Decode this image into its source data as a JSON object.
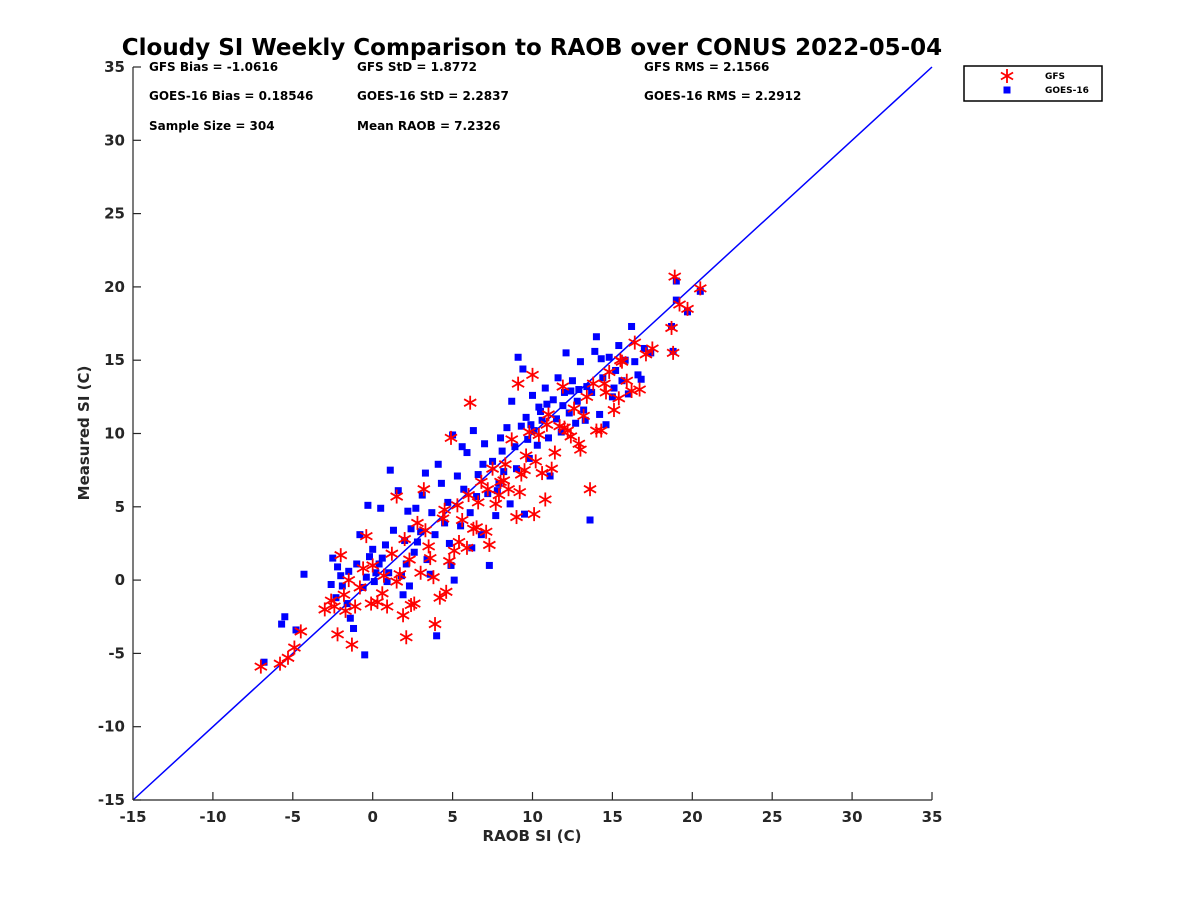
{
  "chart_data": {
    "type": "scatter",
    "title": "Cloudy SI Weekly Comparison to RAOB over CONUS 2022-05-04",
    "xlabel": "RAOB SI (C)",
    "ylabel": "Measured SI (C)",
    "xlim": [
      -15,
      35
    ],
    "ylim": [
      -15,
      35
    ],
    "xticks": [
      -15,
      -10,
      -5,
      0,
      5,
      10,
      15,
      20,
      25,
      30,
      35
    ],
    "yticks": [
      -15,
      -10,
      -5,
      0,
      5,
      10,
      15,
      20,
      25,
      30,
      35
    ],
    "grid": false,
    "legend_position": "outside top-right",
    "reference_line": {
      "name": "1:1",
      "color": "#0000ff",
      "x": [
        -15,
        35
      ],
      "y": [
        -15,
        35
      ]
    },
    "stats": [
      [
        "GFS Bias = -1.0616",
        "GFS StD = 1.8772",
        "GFS RMS = 2.1566"
      ],
      [
        "GOES-16 Bias = 0.18546",
        "GOES-16 StD = 2.2837",
        "GOES-16 RMS = 2.2912"
      ],
      [
        "Sample Size = 304",
        "Mean RAOB = 7.2326",
        ""
      ]
    ],
    "series": [
      {
        "name": "GOES-16",
        "marker": "square",
        "color": "#0000ff",
        "points": [
          [
            -6.8,
            -5.6
          ],
          [
            -5.5,
            -2.5
          ],
          [
            -5.7,
            -3.0
          ],
          [
            -4.8,
            -3.4
          ],
          [
            -4.3,
            0.4
          ],
          [
            -2.6,
            -0.3
          ],
          [
            -2.5,
            1.5
          ],
          [
            -2.2,
            0.9
          ],
          [
            -2.3,
            -1.2
          ],
          [
            -1.9,
            -0.4
          ],
          [
            -1.5,
            0.6
          ],
          [
            -1.4,
            -2.6
          ],
          [
            -1.2,
            -3.3
          ],
          [
            -1.0,
            1.1
          ],
          [
            -0.8,
            3.1
          ],
          [
            -0.6,
            -0.5
          ],
          [
            -0.4,
            0.2
          ],
          [
            -0.2,
            1.6
          ],
          [
            0.0,
            2.1
          ],
          [
            0.1,
            -0.1
          ],
          [
            0.2,
            0.5
          ],
          [
            0.4,
            1.1
          ],
          [
            -0.3,
            5.1
          ],
          [
            0.5,
            4.9
          ],
          [
            0.8,
            2.4
          ],
          [
            0.9,
            -0.1
          ],
          [
            1.0,
            0.5
          ],
          [
            1.1,
            7.5
          ],
          [
            1.3,
            3.4
          ],
          [
            1.6,
            6.1
          ],
          [
            1.8,
            0.3
          ],
          [
            2.0,
            2.7
          ],
          [
            2.1,
            1.1
          ],
          [
            2.2,
            4.7
          ],
          [
            2.4,
            3.5
          ],
          [
            2.6,
            1.9
          ],
          [
            2.8,
            2.6
          ],
          [
            3.0,
            3.3
          ],
          [
            3.1,
            5.8
          ],
          [
            3.3,
            7.3
          ],
          [
            3.4,
            1.4
          ],
          [
            3.7,
            4.6
          ],
          [
            3.9,
            3.1
          ],
          [
            4.1,
            7.9
          ],
          [
            4.3,
            6.6
          ],
          [
            4.5,
            3.9
          ],
          [
            4.7,
            5.3
          ],
          [
            4.9,
            1.0
          ],
          [
            5.0,
            9.9
          ],
          [
            5.1,
            0.0
          ],
          [
            5.3,
            7.1
          ],
          [
            5.5,
            3.7
          ],
          [
            5.7,
            6.2
          ],
          [
            5.9,
            8.7
          ],
          [
            6.1,
            4.6
          ],
          [
            6.3,
            10.2
          ],
          [
            6.5,
            5.7
          ],
          [
            6.6,
            7.2
          ],
          [
            6.8,
            3.1
          ],
          [
            7.0,
            9.3
          ],
          [
            7.2,
            5.9
          ],
          [
            7.3,
            1.0
          ],
          [
            7.5,
            8.1
          ],
          [
            7.7,
            4.4
          ],
          [
            7.9,
            6.6
          ],
          [
            8.0,
            9.7
          ],
          [
            8.2,
            7.4
          ],
          [
            8.4,
            10.4
          ],
          [
            8.6,
            5.2
          ],
          [
            8.7,
            12.2
          ],
          [
            8.9,
            9.1
          ],
          [
            9.0,
            7.6
          ],
          [
            9.1,
            15.2
          ],
          [
            9.3,
            10.5
          ],
          [
            9.4,
            14.4
          ],
          [
            9.6,
            11.1
          ],
          [
            9.7,
            9.6
          ],
          [
            9.8,
            8.3
          ],
          [
            10.0,
            12.6
          ],
          [
            10.1,
            10.2
          ],
          [
            10.3,
            9.2
          ],
          [
            10.4,
            11.8
          ],
          [
            10.6,
            10.9
          ],
          [
            10.8,
            13.1
          ],
          [
            11.0,
            9.7
          ],
          [
            11.1,
            7.1
          ],
          [
            11.3,
            12.3
          ],
          [
            11.5,
            11.0
          ],
          [
            11.6,
            13.8
          ],
          [
            11.8,
            10.1
          ],
          [
            12.0,
            12.8
          ],
          [
            12.1,
            15.5
          ],
          [
            12.3,
            11.4
          ],
          [
            12.5,
            13.6
          ],
          [
            12.7,
            10.7
          ],
          [
            12.8,
            12.2
          ],
          [
            13.0,
            14.9
          ],
          [
            13.2,
            11.6
          ],
          [
            13.4,
            13.2
          ],
          [
            13.6,
            4.1
          ],
          [
            13.7,
            12.8
          ],
          [
            13.9,
            15.6
          ],
          [
            14.0,
            16.6
          ],
          [
            14.2,
            11.3
          ],
          [
            14.4,
            13.8
          ],
          [
            14.6,
            10.6
          ],
          [
            14.8,
            15.2
          ],
          [
            15.0,
            12.5
          ],
          [
            15.2,
            14.3
          ],
          [
            15.4,
            16.0
          ],
          [
            15.6,
            13.6
          ],
          [
            15.8,
            15.0
          ],
          [
            16.0,
            12.7
          ],
          [
            16.2,
            17.3
          ],
          [
            16.4,
            14.9
          ],
          [
            16.6,
            14.0
          ],
          [
            16.8,
            13.7
          ],
          [
            17.0,
            15.8
          ],
          [
            17.4,
            15.5
          ],
          [
            18.7,
            17.3
          ],
          [
            18.8,
            15.6
          ],
          [
            19.0,
            19.1
          ],
          [
            19.0,
            20.4
          ],
          [
            19.7,
            18.3
          ],
          [
            20.5,
            19.7
          ],
          [
            4.0,
            -3.8
          ],
          [
            -0.5,
            -5.1
          ],
          [
            2.3,
            -0.4
          ],
          [
            0.6,
            1.5
          ],
          [
            1.9,
            -1.0
          ],
          [
            3.6,
            0.4
          ],
          [
            6.2,
            2.2
          ],
          [
            4.8,
            2.5
          ],
          [
            -2.0,
            0.3
          ],
          [
            -1.6,
            -1.6
          ],
          [
            2.7,
            4.9
          ],
          [
            5.6,
            9.1
          ],
          [
            6.9,
            7.9
          ],
          [
            9.5,
            4.5
          ],
          [
            10.5,
            11.5
          ],
          [
            12.4,
            12.9
          ],
          [
            14.3,
            15.1
          ],
          [
            15.1,
            13.1
          ],
          [
            11.9,
            11.9
          ],
          [
            13.3,
            10.9
          ],
          [
            8.1,
            8.8
          ],
          [
            7.8,
            6.1
          ],
          [
            9.9,
            10.6
          ],
          [
            10.9,
            12.0
          ],
          [
            12.9,
            13.0
          ]
        ]
      },
      {
        "name": "GFS",
        "marker": "asterisk",
        "color": "#ff0000",
        "points": [
          [
            -7.0,
            -5.9
          ],
          [
            -5.8,
            -5.7
          ],
          [
            -5.3,
            -5.3
          ],
          [
            -4.9,
            -4.6
          ],
          [
            -4.5,
            -3.5
          ],
          [
            -3.0,
            -2.0
          ],
          [
            -2.6,
            -1.4
          ],
          [
            -2.2,
            -3.7
          ],
          [
            -2.0,
            1.7
          ],
          [
            -1.8,
            -1.0
          ],
          [
            -1.3,
            -4.4
          ],
          [
            -1.1,
            -1.8
          ],
          [
            -0.8,
            -0.5
          ],
          [
            -0.6,
            0.8
          ],
          [
            -0.4,
            3.0
          ],
          [
            -0.1,
            -1.6
          ],
          [
            0.3,
            -1.5
          ],
          [
            0.6,
            -0.9
          ],
          [
            0.9,
            -1.8
          ],
          [
            1.2,
            1.8
          ],
          [
            1.5,
            -0.1
          ],
          [
            1.5,
            5.7
          ],
          [
            1.9,
            -2.4
          ],
          [
            2.1,
            -3.9
          ],
          [
            2.3,
            1.4
          ],
          [
            2.6,
            -1.6
          ],
          [
            2.8,
            3.9
          ],
          [
            3.0,
            0.5
          ],
          [
            3.2,
            6.2
          ],
          [
            3.5,
            2.3
          ],
          [
            3.8,
            0.2
          ],
          [
            3.9,
            -3.0
          ],
          [
            4.2,
            -1.2
          ],
          [
            4.4,
            4.2
          ],
          [
            4.6,
            -0.8
          ],
          [
            4.8,
            1.3
          ],
          [
            4.9,
            9.7
          ],
          [
            5.1,
            2.0
          ],
          [
            5.3,
            5.1
          ],
          [
            5.6,
            4.1
          ],
          [
            5.9,
            2.2
          ],
          [
            6.1,
            12.1
          ],
          [
            6.3,
            3.5
          ],
          [
            6.6,
            5.3
          ],
          [
            6.8,
            6.7
          ],
          [
            7.1,
            3.3
          ],
          [
            7.3,
            2.4
          ],
          [
            7.5,
            7.6
          ],
          [
            7.7,
            5.2
          ],
          [
            8.0,
            6.7
          ],
          [
            8.3,
            7.9
          ],
          [
            8.5,
            6.2
          ],
          [
            8.7,
            9.6
          ],
          [
            9.0,
            4.3
          ],
          [
            9.1,
            13.4
          ],
          [
            9.3,
            7.2
          ],
          [
            9.6,
            8.5
          ],
          [
            9.8,
            10.1
          ],
          [
            10.0,
            14.0
          ],
          [
            10.1,
            4.5
          ],
          [
            10.4,
            9.9
          ],
          [
            10.6,
            7.3
          ],
          [
            10.8,
            5.5
          ],
          [
            11.0,
            11.3
          ],
          [
            11.2,
            7.6
          ],
          [
            11.4,
            8.7
          ],
          [
            11.7,
            10.5
          ],
          [
            11.9,
            13.2
          ],
          [
            12.2,
            10.2
          ],
          [
            12.4,
            9.8
          ],
          [
            12.6,
            11.7
          ],
          [
            12.9,
            9.3
          ],
          [
            13.0,
            8.9
          ],
          [
            13.2,
            11.2
          ],
          [
            13.6,
            6.2
          ],
          [
            13.8,
            13.4
          ],
          [
            14.0,
            10.2
          ],
          [
            14.3,
            10.2
          ],
          [
            14.6,
            12.8
          ],
          [
            14.8,
            14.2
          ],
          [
            15.1,
            11.6
          ],
          [
            15.4,
            12.4
          ],
          [
            15.6,
            14.9
          ],
          [
            15.9,
            13.6
          ],
          [
            16.2,
            12.9
          ],
          [
            16.4,
            16.2
          ],
          [
            16.7,
            13.0
          ],
          [
            17.1,
            15.4
          ],
          [
            17.5,
            15.8
          ],
          [
            18.7,
            17.2
          ],
          [
            18.8,
            15.5
          ],
          [
            18.9,
            20.7
          ],
          [
            19.2,
            18.8
          ],
          [
            19.7,
            18.5
          ],
          [
            20.5,
            19.9
          ],
          [
            -2.4,
            -1.8
          ],
          [
            -1.5,
            0.0
          ],
          [
            0.7,
            0.3
          ],
          [
            2.0,
            2.8
          ],
          [
            3.3,
            3.4
          ],
          [
            4.5,
            4.8
          ],
          [
            6.0,
            5.8
          ],
          [
            7.2,
            6.2
          ],
          [
            8.2,
            6.8
          ],
          [
            9.5,
            7.5
          ],
          [
            10.9,
            10.6
          ],
          [
            12.0,
            10.4
          ],
          [
            13.4,
            12.5
          ],
          [
            14.5,
            13.4
          ],
          [
            15.5,
            15.0
          ],
          [
            -1.7,
            -2.1
          ],
          [
            0.0,
            1.0
          ],
          [
            1.7,
            0.4
          ],
          [
            2.4,
            -1.7
          ],
          [
            3.6,
            1.5
          ],
          [
            5.4,
            2.6
          ],
          [
            6.5,
            3.6
          ],
          [
            7.9,
            5.8
          ],
          [
            9.2,
            6.0
          ],
          [
            10.2,
            8.1
          ]
        ]
      }
    ]
  }
}
